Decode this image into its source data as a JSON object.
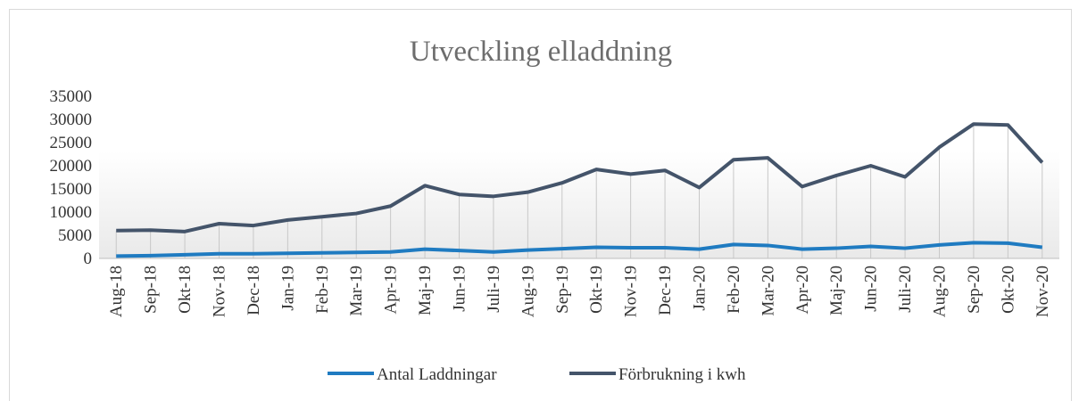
{
  "chart_data": {
    "type": "line",
    "title": "Utveckling elladdning",
    "categories": [
      "Aug-18",
      "Sep-18",
      "Okt-18",
      "Nov-18",
      "Dec-18",
      "Jan-19",
      "Feb-19",
      "Mar-19",
      "Apr-19",
      "Maj-19",
      "Jun-19",
      "Juli-19",
      "Aug-19",
      "Sep-19",
      "Okt-19",
      "Nov-19",
      "Dec-19",
      "Jan-20",
      "Feb-20",
      "Mar-20",
      "Apr-20",
      "Maj-20",
      "Jun-20",
      "Juli-20",
      "Aug-20",
      "Sep-20",
      "Okt-20",
      "Nov-20"
    ],
    "series": [
      {
        "name": "Antal Laddningar",
        "color": "#1f7bc1",
        "values": [
          500,
          600,
          800,
          1000,
          1000,
          1100,
          1200,
          1300,
          1400,
          2000,
          1700,
          1400,
          1800,
          2100,
          2400,
          2300,
          2300,
          2000,
          3000,
          2800,
          2000,
          2200,
          2600,
          2200,
          2900,
          3400,
          3300,
          2400
        ]
      },
      {
        "name": "Förbrukning i kwh",
        "color": "#44546a",
        "values": [
          6000,
          6100,
          5800,
          7500,
          7100,
          8300,
          9000,
          9700,
          11300,
          15700,
          13800,
          13400,
          14300,
          16300,
          19200,
          18200,
          19000,
          15300,
          21300,
          21700,
          15500,
          17900,
          20000,
          17600,
          24000,
          29000,
          28800,
          20700
        ]
      }
    ],
    "ylim": [
      0,
      35000
    ],
    "yticks": [
      0,
      5000,
      10000,
      15000,
      20000,
      25000,
      30000,
      35000
    ],
    "grid": false,
    "legend": "bottom"
  }
}
